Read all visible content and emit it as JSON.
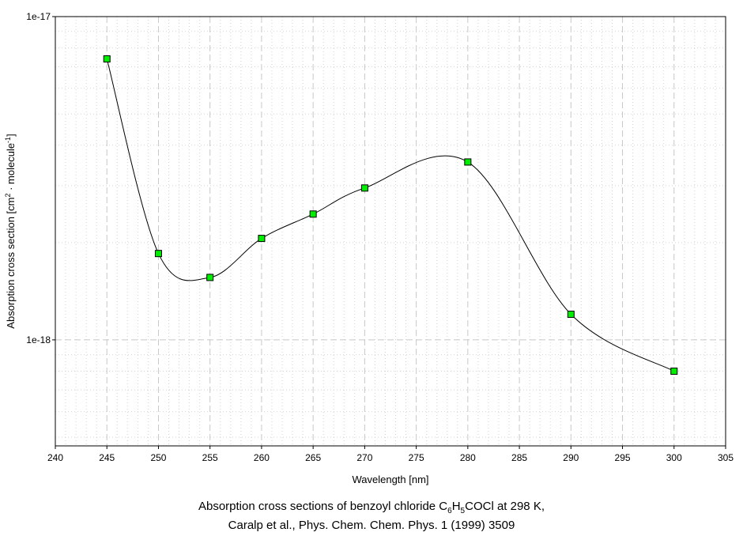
{
  "chart_data": {
    "type": "scatter",
    "connected": true,
    "curve": "smooth",
    "xlabel": "Wavelength [nm]",
    "ylabel": {
      "prefix": "Absorption cross section [cm",
      "sup1": "2",
      "middle": " · molecule",
      "sup2": "-1",
      "suffix": "]"
    },
    "xlim": [
      240,
      305
    ],
    "ylim": [
      4.7e-19,
      1e-17
    ],
    "yscale": "log",
    "x_ticks": [
      240,
      245,
      250,
      255,
      260,
      265,
      270,
      275,
      280,
      285,
      290,
      295,
      300,
      305
    ],
    "x_tick_labels": [
      "240",
      "245",
      "250",
      "255",
      "260",
      "265",
      "270",
      "275",
      "280",
      "285",
      "290",
      "295",
      "300",
      "305"
    ],
    "y_ticks": [
      1e-18,
      1e-17
    ],
    "y_tick_labels": [
      "1e-18",
      "1e-17"
    ],
    "grid": true,
    "legend": "none",
    "series": [
      {
        "x": [
          245,
          250,
          255,
          260,
          265,
          270,
          280,
          290,
          300
        ],
        "y": [
          7.4e-18,
          1.85e-18,
          1.56e-18,
          2.06e-18,
          2.45e-18,
          2.95e-18,
          3.55e-18,
          1.2e-18,
          8e-19
        ],
        "marker_color": "#00ee00",
        "line_color": "#000000"
      }
    ]
  },
  "caption": {
    "line1_prefix": "Absorption cross sections of benzoyl chloride C",
    "sub1": "6",
    "h": "H",
    "sub2": "5",
    "line1_suffix": "COCl at 298 K,",
    "line2": "Caralp et al., Phys. Chem. Chem. Phys. 1 (1999) 3509"
  }
}
